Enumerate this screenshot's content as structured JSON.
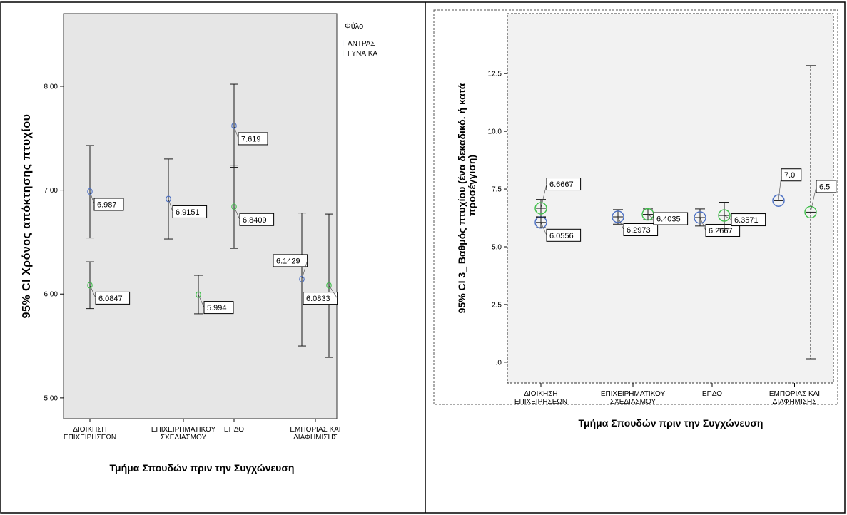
{
  "colors": {
    "male": "#4a6fc4",
    "female": "#3fbf4a",
    "bar": "#1a1a1a",
    "plot_bg_left": "#e6e6e6",
    "plot_bg_right": "#f2f2f2"
  },
  "chart_data": [
    {
      "type": "scatter",
      "subtype": "errorbar",
      "title": "",
      "xlabel": "Τμήμα Σπουδών πριν την Συγχώνευση",
      "ylabel": "95% CI Χρόνος απόκτησης πτυχίου",
      "categories": [
        "ΔΙΟΙΚΗΣΗ\nΕΠΙΧΕΙΡΗΣΕΩΝ",
        "ΕΠΙΧΕΙΡΗΜΑΤΙΚΟΥ\nΣΧΕΔΙΑΣΜΟΥ",
        "ΕΠΔΟ",
        "ΕΜΠΟΡΙΑΣ ΚΑΙ\nΔΙΑΦΗΜΙΣΗΣ"
      ],
      "ylim": [
        4.8,
        8.7
      ],
      "yticks": [
        "5.00",
        "6.00",
        "7.00",
        "8.00"
      ],
      "legend_title": "Φύλο",
      "legend_position": "top-right",
      "grid": false,
      "series": [
        {
          "name": "ΑΝΤΡΑΣ",
          "values": [
            6.987,
            6.9151,
            7.619,
            6.1429
          ],
          "lower": [
            6.54,
            6.53,
            7.22,
            5.5
          ],
          "upper": [
            7.43,
            7.3,
            8.02,
            6.78
          ],
          "labels": [
            "6.987",
            "6.9151",
            "7.619",
            "6.1429"
          ]
        },
        {
          "name": "ΓΥΝΑΙΚΑ",
          "values": [
            6.0847,
            5.994,
            6.8409,
            6.0833
          ],
          "lower": [
            5.86,
            5.81,
            6.44,
            5.39
          ],
          "upper": [
            6.31,
            6.18,
            7.24,
            6.77
          ],
          "labels": [
            "6.0847",
            "5.994",
            "6.8409",
            "6.0833"
          ]
        }
      ]
    },
    {
      "type": "scatter",
      "subtype": "errorbar",
      "title": "",
      "xlabel": "Τμήμα Σπουδών πριν την Συγχώνευση",
      "ylabel": [
        "95% CI 3_ Βαθμός πτυχίου  (ένα δεκαδικό. ή κατά",
        "προσέγγιση)"
      ],
      "categories": [
        "ΔΙΟΙΚΗΣΗ\nΕΠΙΧΕΙΡΗΣΕΩΝ",
        "ΕΠΙΧΕΙΡΗΜΑΤΙΚΟΥ\nΣΧΕΔΙΑΣΜΟΥ",
        "ΕΠΔΟ",
        "ΕΜΠΟΡΙΑΣ ΚΑΙ\nΔΙΑΦΗΜΙΣΗΣ"
      ],
      "ylim": [
        -0.9,
        15.1
      ],
      "yticks": [
        ".0",
        "2.5",
        "5.0",
        "7.5",
        "10.0",
        "12.5"
      ],
      "grid": false,
      "series": [
        {
          "name": "ΑΝΤΡΑΣ",
          "values": [
            6.0556,
            6.2973,
            6.2667,
            7.0
          ],
          "lower": [
            5.83,
            5.98,
            5.9,
            7.0
          ],
          "upper": [
            6.3,
            6.61,
            6.64,
            7.0
          ],
          "labels": [
            "6.0556",
            "6.2973",
            "6.2667",
            "7.0"
          ]
        },
        {
          "name": "ΓΥΝΑΙΚΑ",
          "values": [
            6.6667,
            6.4035,
            6.3571,
            6.5
          ],
          "lower": [
            6.27,
            6.17,
            5.78,
            0.15
          ],
          "upper": [
            7.05,
            6.64,
            6.93,
            12.85
          ],
          "labels": [
            "6.6667",
            "6.4035",
            "6.3571",
            "6.5"
          ]
        }
      ]
    }
  ]
}
